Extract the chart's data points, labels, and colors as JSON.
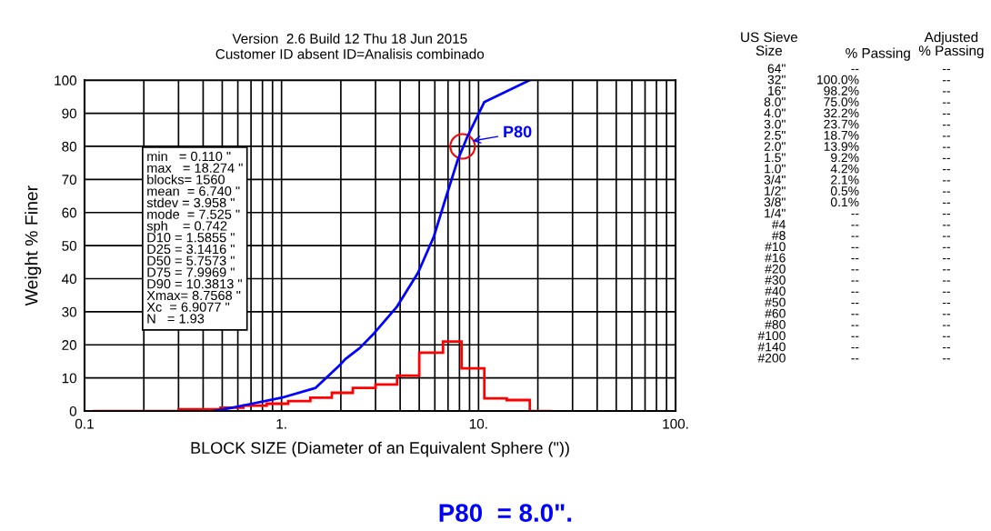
{
  "chart_data": {
    "type": "histogram",
    "title": "Version  2.6 Build 12 Thu 18 Jun 2015",
    "subtitle": "Customer ID absent ID=Analisis combinado",
    "xlabel": "BLOCK SIZE (Diameter of an Equivalent Sphere (\"))",
    "ylabel": "Weight % Finer",
    "log": "x",
    "xlim": [
      0.1,
      100
    ],
    "ylim": [
      0,
      100
    ],
    "xticks": [
      {
        "value": 0.1,
        "label": "0.1"
      },
      {
        "value": 0.2,
        "label": null
      },
      {
        "value": 0.3,
        "label": null
      },
      {
        "value": 0.4,
        "label": null
      },
      {
        "value": 0.5,
        "label": null
      },
      {
        "value": 0.6,
        "label": null
      },
      {
        "value": 0.7,
        "label": null
      },
      {
        "value": 0.8,
        "label": null
      },
      {
        "value": 0.9,
        "label": null
      },
      {
        "value": 1,
        "label": "1."
      },
      {
        "value": 2,
        "label": null
      },
      {
        "value": 3,
        "label": null
      },
      {
        "value": 4,
        "label": null
      },
      {
        "value": 5,
        "label": null
      },
      {
        "value": 6,
        "label": null
      },
      {
        "value": 7,
        "label": null
      },
      {
        "value": 8,
        "label": null
      },
      {
        "value": 9,
        "label": null
      },
      {
        "value": 10,
        "label": "10."
      },
      {
        "value": 20,
        "label": null
      },
      {
        "value": 30,
        "label": null
      },
      {
        "value": 40,
        "label": null
      },
      {
        "value": 50,
        "label": null
      },
      {
        "value": 60,
        "label": null
      },
      {
        "value": 70,
        "label": null
      },
      {
        "value": 80,
        "label": null
      },
      {
        "value": 90,
        "label": null
      },
      {
        "value": 100,
        "label": "100."
      }
    ],
    "yticks": [
      0,
      10,
      20,
      30,
      40,
      50,
      60,
      70,
      80,
      90,
      100
    ],
    "grid": true,
    "series": [
      {
        "color": "#ff0000",
        "bins": [
          0.11,
          0.3,
          0.49,
          0.64,
          0.84,
          1.08,
          1.4,
          1.8,
          2.3,
          3.0,
          3.86,
          5.0,
          6.6,
          8.2,
          10.7,
          13.9,
          18.2,
          23.6
        ],
        "values": [
          0,
          0.5,
          1,
          1.6,
          2.2,
          3,
          4,
          5.5,
          7,
          8,
          10.7,
          17.6,
          21,
          12.9,
          3.8,
          3.3,
          0
        ]
      },
      {
        "type": "line",
        "color": "#0000ff",
        "x": [
          0.45,
          0.51,
          0.68,
          1.0,
          1.49,
          1.96,
          2.11,
          2.49,
          2.9,
          3.86,
          4.93,
          5.93,
          6.76,
          7.8,
          8.7,
          10.7,
          18.2
        ],
        "values": [
          0,
          0.5,
          2,
          4,
          7,
          13.7,
          15.7,
          19,
          23,
          31.6,
          41.8,
          52.7,
          63.7,
          75.5,
          82.4,
          93.4,
          100
        ]
      }
    ],
    "annotations": [
      {
        "text": "P80",
        "x": 8.3,
        "y": 80
      },
      "min   = 0.110 \"\nmax   = 18.274 \"\nblocks= 1560\nmean  = 6.740 \"\nstdev = 3.958 \"\nmode  = 7.525 \"\nsph    = 0.742\nD10 = 1.5855 \"\nD25 = 3.1416 \"\nD50 = 5.7573 \"\nD75 = 7.9969 \"\nD90 = 10.3813 \"\nXmax= 8.7568 \"\nXc  = 6.9077 \"\nN   = 1.93",
      "US Sieve\nSize",
      "% Passing",
      "Adjusted\n% Passing",
      "64\"\n32\"\n16\"\n8.0\"\n4.0\"\n3.0\"\n2.5\"\n2.0\"\n1.5\"\n1.0\"\n3/4\"\n1/2\"\n3/8\"\n1/4\"\n#4\n#8\n#10\n#16\n#20\n#30\n#40\n#50\n#60\n#80\n#100\n#140\n#200",
      "--\n100.0%\n98.2%\n75.0%\n32.2%\n23.7%\n18.7%\n13.9%\n9.2%\n4.2%\n2.1%\n0.5%\n0.1%\n--\n--\n--\n--\n--\n--\n--\n--\n--\n--\n--\n--\n--\n--",
      "--\n--\n--\n--\n--\n--\n--\n--\n--\n--\n--\n--\n--\n--\n--\n--\n--\n--\n--\n--\n--\n--\n--\n--\n--\n--\n--",
      "P80  = 8.0\"."
    ]
  }
}
